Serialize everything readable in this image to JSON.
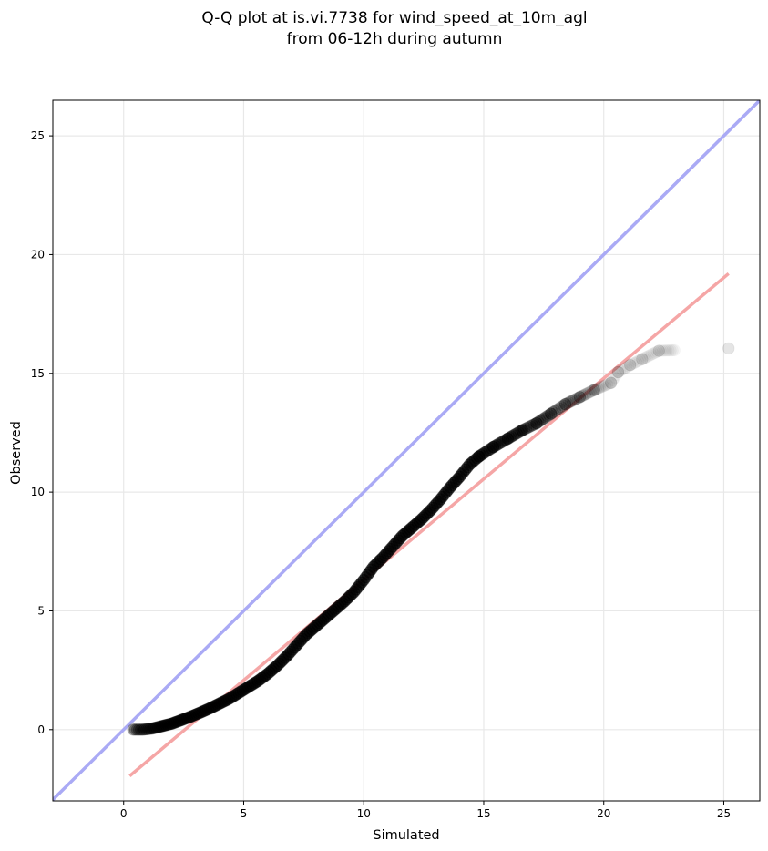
{
  "chart_data": {
    "type": "scatter",
    "title": [
      "Q-Q plot at is.vi.7738 for wind_speed_at_10m_agl",
      "from 06-12h during autumn"
    ],
    "xlabel": "Simulated",
    "ylabel": "Observed",
    "xlim": [
      -2.95,
      26.5
    ],
    "ylim": [
      -3.0,
      26.5
    ],
    "xticks": [
      0,
      5,
      10,
      15,
      20,
      25
    ],
    "yticks": [
      0,
      5,
      10,
      15,
      20,
      25
    ],
    "grid": true,
    "point_color": "#000000",
    "reference_lines": [
      {
        "name": "1:1",
        "color": "#aaaaf5",
        "points": [
          [
            -2.95,
            -2.95
          ],
          [
            26.5,
            26.5
          ]
        ]
      },
      {
        "name": "fit",
        "color": "#f5a6a6",
        "points": [
          [
            0.25,
            -1.95
          ],
          [
            25.2,
            19.2
          ]
        ]
      }
    ],
    "series": [
      {
        "points": [
          [
            0.4,
            0.0
          ],
          [
            0.8,
            0.0
          ],
          [
            1.2,
            0.05
          ],
          [
            1.6,
            0.15
          ],
          [
            2.0,
            0.25
          ],
          [
            2.4,
            0.4
          ],
          [
            2.8,
            0.55
          ],
          [
            3.2,
            0.72
          ],
          [
            3.6,
            0.9
          ],
          [
            4.0,
            1.1
          ],
          [
            4.4,
            1.3
          ],
          [
            4.8,
            1.55
          ],
          [
            5.2,
            1.8
          ],
          [
            5.6,
            2.05
          ],
          [
            6.0,
            2.35
          ],
          [
            6.4,
            2.7
          ],
          [
            6.8,
            3.1
          ],
          [
            7.2,
            3.55
          ],
          [
            7.6,
            4.0
          ],
          [
            8.0,
            4.35
          ],
          [
            8.4,
            4.7
          ],
          [
            8.8,
            5.05
          ],
          [
            9.2,
            5.4
          ],
          [
            9.6,
            5.8
          ],
          [
            10.0,
            6.3
          ],
          [
            10.4,
            6.85
          ],
          [
            10.8,
            7.25
          ],
          [
            11.2,
            7.7
          ],
          [
            11.6,
            8.15
          ],
          [
            12.0,
            8.5
          ],
          [
            12.4,
            8.85
          ],
          [
            12.8,
            9.25
          ],
          [
            13.2,
            9.7
          ],
          [
            13.6,
            10.2
          ],
          [
            14.0,
            10.65
          ],
          [
            14.4,
            11.15
          ],
          [
            14.8,
            11.5
          ],
          [
            15.4,
            11.9
          ],
          [
            16.0,
            12.25
          ],
          [
            16.6,
            12.6
          ],
          [
            17.2,
            12.9
          ],
          [
            17.8,
            13.3
          ],
          [
            18.4,
            13.7
          ],
          [
            19.0,
            14.0
          ],
          [
            19.6,
            14.3
          ],
          [
            20.3,
            14.6
          ],
          [
            20.6,
            15.05
          ],
          [
            21.1,
            15.35
          ],
          [
            21.6,
            15.6
          ],
          [
            22.3,
            15.95
          ],
          [
            25.2,
            16.05
          ]
        ]
      }
    ]
  }
}
